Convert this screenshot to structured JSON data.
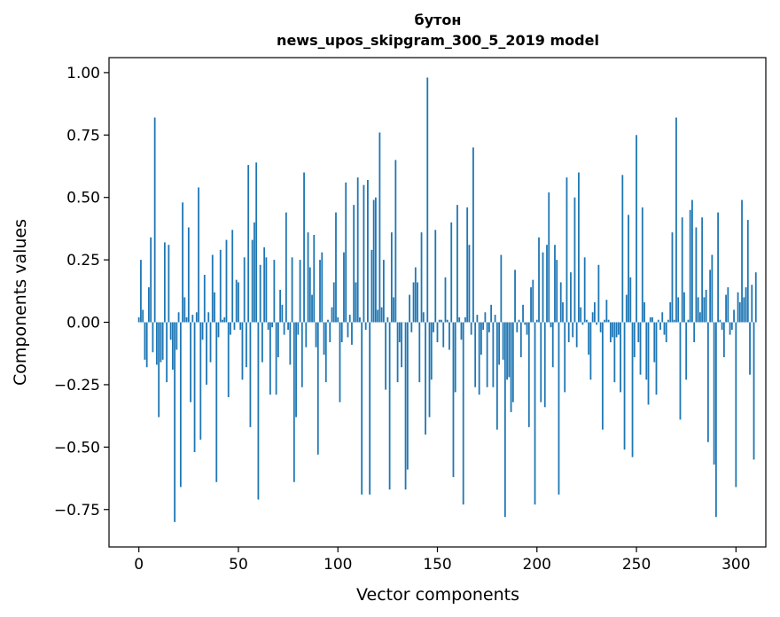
{
  "chart_data": {
    "type": "bar",
    "title_line1": "бутон",
    "title_line2": "news_upos_skipgram_300_5_2019 model",
    "xlabel": "Vector components",
    "ylabel": "Components values",
    "xlim": [
      -15,
      315
    ],
    "ylim": [
      -0.9,
      1.06
    ],
    "x_ticks": [
      0,
      50,
      100,
      150,
      200,
      250,
      300
    ],
    "y_ticks": [
      -0.75,
      -0.5,
      -0.25,
      0.0,
      0.25,
      0.5,
      0.75,
      1.0
    ],
    "x_tick_labels": [
      "0",
      "50",
      "100",
      "150",
      "200",
      "250",
      "300"
    ],
    "y_tick_labels": [
      "−0.75",
      "−0.50",
      "−0.25",
      "0.00",
      "0.25",
      "0.50",
      "0.75",
      "1.00"
    ],
    "bar_color": "#1f77b4",
    "values": [
      0.02,
      0.25,
      0.05,
      -0.15,
      -0.18,
      0.14,
      0.34,
      -0.12,
      0.82,
      -0.17,
      -0.38,
      -0.16,
      -0.15,
      0.32,
      -0.24,
      0.31,
      -0.07,
      -0.19,
      -0.8,
      -0.11,
      0.04,
      -0.66,
      0.48,
      0.1,
      0.02,
      0.38,
      -0.32,
      0.03,
      -0.52,
      0.04,
      0.54,
      -0.47,
      -0.07,
      0.19,
      -0.25,
      0.04,
      -0.16,
      0.27,
      0.12,
      -0.64,
      -0.06,
      0.29,
      0.01,
      0.02,
      0.33,
      -0.3,
      -0.05,
      0.37,
      -0.03,
      0.17,
      0.16,
      -0.03,
      -0.23,
      0.26,
      -0.18,
      0.63,
      -0.42,
      0.33,
      0.4,
      0.64,
      -0.71,
      0.23,
      -0.16,
      0.3,
      0.26,
      -0.03,
      -0.29,
      -0.02,
      0.25,
      -0.29,
      -0.14,
      0.13,
      0.07,
      -0.05,
      0.44,
      -0.03,
      -0.17,
      0.26,
      -0.64,
      -0.38,
      -0.05,
      0.25,
      -0.26,
      0.6,
      -0.1,
      0.36,
      0.22,
      0.11,
      0.35,
      -0.1,
      -0.53,
      0.25,
      0.28,
      -0.13,
      -0.24,
      0.01,
      -0.08,
      0.06,
      0.16,
      0.44,
      0.02,
      -0.32,
      -0.08,
      0.28,
      0.56,
      -0.06,
      0.03,
      -0.09,
      0.47,
      0.16,
      0.58,
      0.02,
      -0.69,
      0.55,
      -0.03,
      0.57,
      -0.69,
      0.29,
      0.49,
      0.5,
      0.05,
      0.76,
      0.06,
      0.25,
      -0.27,
      0.02,
      -0.67,
      0.36,
      0.1,
      0.65,
      -0.24,
      -0.08,
      -0.18,
      0.0,
      -0.67,
      -0.59,
      0.11,
      -0.04,
      0.16,
      0.22,
      0.16,
      -0.24,
      0.36,
      0.04,
      -0.45,
      0.98,
      -0.38,
      -0.23,
      -0.04,
      0.37,
      -0.08,
      0.01,
      0.01,
      -0.1,
      0.18,
      0.01,
      -0.11,
      0.4,
      -0.62,
      -0.28,
      0.47,
      0.02,
      -0.07,
      -0.73,
      0.02,
      0.46,
      0.31,
      -0.05,
      0.7,
      -0.26,
      0.03,
      -0.29,
      -0.13,
      -0.03,
      0.04,
      -0.26,
      -0.04,
      0.07,
      -0.26,
      0.03,
      -0.43,
      -0.17,
      0.27,
      -0.15,
      -0.78,
      -0.23,
      -0.22,
      -0.36,
      -0.32,
      0.21,
      -0.04,
      0.01,
      -0.14,
      0.07,
      -0.01,
      -0.05,
      -0.42,
      0.14,
      0.17,
      -0.73,
      0.01,
      0.34,
      -0.32,
      0.28,
      -0.34,
      0.31,
      0.52,
      -0.02,
      -0.18,
      0.31,
      0.25,
      -0.69,
      0.16,
      0.08,
      -0.28,
      0.58,
      -0.08,
      0.2,
      -0.06,
      0.5,
      -0.1,
      0.6,
      0.06,
      -0.01,
      0.26,
      0.01,
      -0.13,
      -0.23,
      0.04,
      0.08,
      -0.01,
      0.23,
      -0.04,
      -0.43,
      0.01,
      0.09,
      0.01,
      -0.08,
      -0.06,
      -0.24,
      -0.06,
      -0.05,
      -0.28,
      0.59,
      -0.51,
      0.11,
      0.43,
      0.18,
      -0.54,
      -0.14,
      0.75,
      -0.08,
      -0.21,
      0.46,
      0.08,
      -0.23,
      -0.33,
      0.02,
      0.02,
      -0.16,
      -0.29,
      0.01,
      -0.03,
      0.04,
      -0.05,
      -0.08,
      0.01,
      0.08,
      0.36,
      0.01,
      0.82,
      0.1,
      -0.39,
      0.42,
      0.12,
      -0.23,
      0.01,
      0.45,
      0.49,
      -0.08,
      0.38,
      0.1,
      0.04,
      0.42,
      0.1,
      0.13,
      -0.48,
      0.21,
      0.27,
      -0.57,
      -0.78,
      0.44,
      0.01,
      -0.03,
      -0.14,
      0.11,
      0.14,
      -0.05,
      -0.03,
      0.05,
      -0.66,
      0.12,
      0.08,
      0.49,
      0.1,
      0.14,
      0.41,
      -0.21,
      0.15,
      -0.55,
      0.2
    ]
  }
}
